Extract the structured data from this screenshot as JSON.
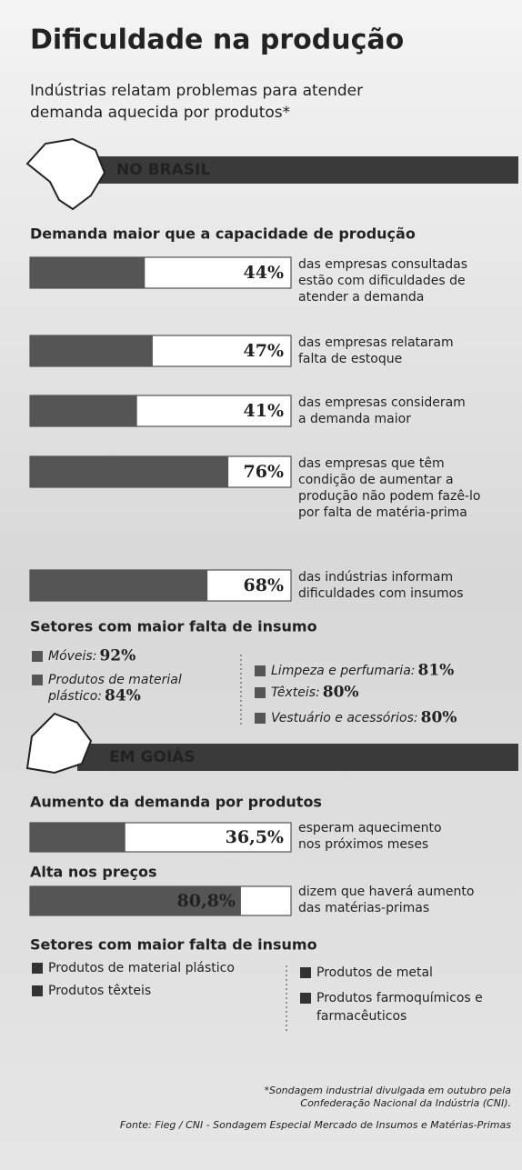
{
  "title": "Dificuldade na produção",
  "subtitle": [
    "Indústrias relatam problemas para atender",
    "demanda aquecida por produtos*"
  ],
  "brasil": {
    "label": "NO BRASIL",
    "bars_title": "Demanda maior que a capacidade de produção",
    "values": [
      44,
      47,
      41,
      76,
      68
    ],
    "value_labels": [
      "44%",
      "47%",
      "41%",
      "76%",
      "68%"
    ],
    "texts": [
      [
        "das empresas consultadas",
        "estão com dificuldades de",
        "atender a demanda"
      ],
      [
        "das empresas relataram",
        "falta de estoque"
      ],
      [
        "das empresas consideram",
        "a demanda maior"
      ],
      [
        "das empresas que têm",
        "condição de aumentar a",
        "produção não podem fazê-lo",
        "por falta de matéria-prima"
      ],
      [
        "das indústrias informam",
        "dificuldades com insumos"
      ]
    ],
    "xlim": [
      0,
      100
    ],
    "sectors_title": "Setores com maior falta de insumo",
    "sectors": [
      {
        "name": [
          "Móveis:"
        ],
        "value_label": "92%"
      },
      {
        "name": [
          "Produtos de material",
          "plástico:"
        ],
        "value_label": "84%"
      },
      {
        "name": [
          "Limpeza e perfumaria:"
        ],
        "value_label": "81%"
      },
      {
        "name": [
          "Têxteis:"
        ],
        "value_label": "80%"
      },
      {
        "name": [
          "Vestuário e acessórios:"
        ],
        "value_label": "80%"
      }
    ]
  },
  "goias": {
    "label": "EM GOIÁS",
    "groups": [
      {
        "title": "Aumento da demanda por produtos",
        "value": 36.5,
        "value_label": "36,5%",
        "text": [
          "esperam aquecimento",
          "nos próximos meses"
        ]
      },
      {
        "title": "Alta nos preços",
        "value": 80.8,
        "value_label": "80,8%",
        "text": [
          "dizem que haverá aumento",
          "das matérias-primas"
        ]
      }
    ],
    "xlim": [
      0,
      100
    ],
    "sectors_title": "Setores com maior falta de insumo",
    "sectors": [
      [
        "Produtos de material plástico"
      ],
      [
        "Produtos têxteis"
      ],
      [
        "Produtos de metal"
      ],
      [
        "Produtos farmoquímicos e",
        "farmacêuticos"
      ]
    ]
  },
  "footnote": [
    "*Sondagem industrial divulgada em outubro pela",
    "Confederação Nacional da Indústria (CNI)."
  ],
  "source": "Fonte: Fieg / CNI - Sondagem Especial Mercado de Insumos e Matérias-Primas"
}
